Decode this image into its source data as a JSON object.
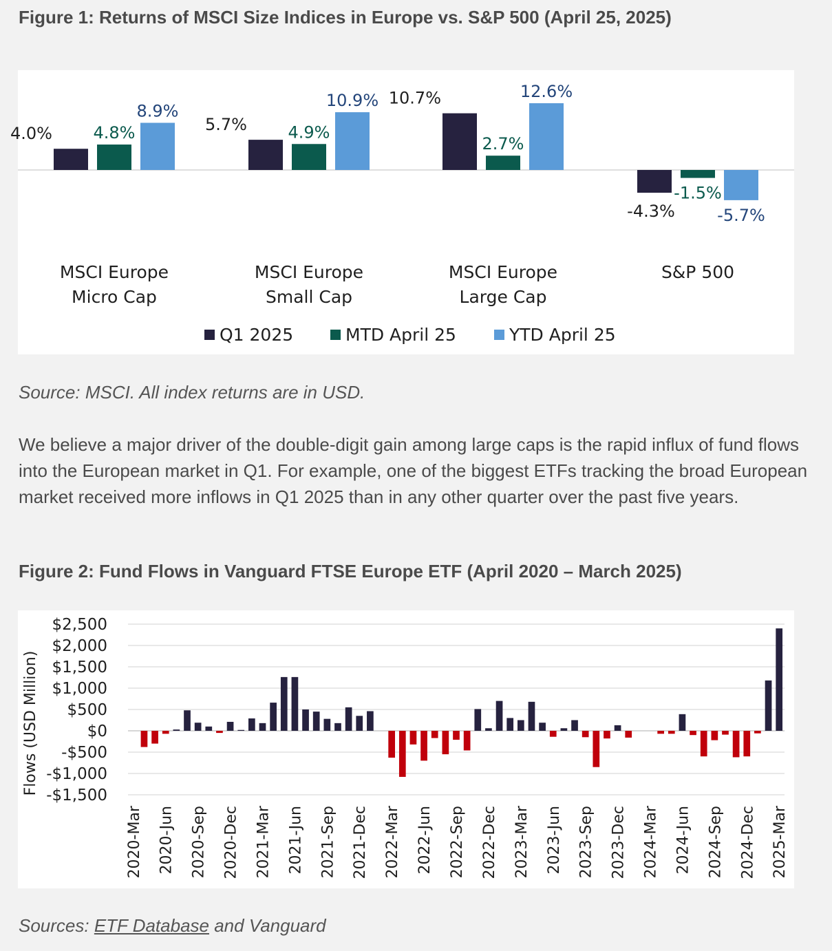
{
  "figure1": {
    "title": "Figure 1: Returns of MSCI Size Indices in Europe vs. S&P 500 (April 25, 2025)",
    "source": "Source: MSCI. All index returns are in USD.",
    "chart_data": {
      "type": "bar",
      "title": "Figure 1: Returns of MSCI Size Indices in Europe vs. S&P 500 (April 25, 2025)",
      "categories": [
        [
          "MSCI Europe",
          "Micro Cap"
        ],
        [
          "MSCI Europe",
          "Small Cap"
        ],
        [
          "MSCI Europe",
          "Large Cap"
        ],
        [
          "S&P 500"
        ]
      ],
      "series": [
        {
          "name": "Q1 2025",
          "color": "#26223f",
          "label_color": "#1f1f1f",
          "values": [
            4.0,
            5.7,
            10.7,
            -4.3
          ],
          "labels": [
            "4.0%",
            "5.7%",
            "10.7%",
            "-4.3%"
          ]
        },
        {
          "name": "MTD April 25",
          "color": "#0b5a4d",
          "label_color": "#0b5a4d",
          "values": [
            4.8,
            4.9,
            2.7,
            -1.5
          ],
          "labels": [
            "4.8%",
            "4.9%",
            "2.7%",
            "-1.5%"
          ]
        },
        {
          "name": "YTD April 25",
          "color": "#5b9bd8",
          "label_color": "#23457a",
          "values": [
            8.9,
            10.9,
            12.6,
            -5.7
          ],
          "labels": [
            "8.9%",
            "10.9%",
            "12.6%",
            "-5.7%"
          ]
        }
      ],
      "ylim": [
        -6,
        13
      ],
      "grid": false,
      "legend": "bottom"
    }
  },
  "paragraph": "We believe a major driver of the double-digit gain among large caps is the rapid influx of fund flows into the European market in Q1. For example, one of the biggest ETFs tracking the broad European market received more inflows in Q1 2025 than in any other quarter over the past five years.",
  "figure2": {
    "title": "Figure 2: Fund Flows in Vanguard FTSE Europe ETF (April 2020 – March 2025)",
    "source_prefix": "Sources: ",
    "source_link": "ETF Database",
    "source_suffix": " and Vanguard",
    "chart_data": {
      "type": "bar",
      "ylabel": "Flows (USD Million)",
      "ylim": [
        -1500,
        2500
      ],
      "yticks": [
        2500,
        2000,
        1500,
        1000,
        500,
        0,
        -500,
        -1000,
        -1500
      ],
      "ytick_labels": [
        "$2,500",
        "$2,000",
        "$1,500",
        "$1,000",
        "$500",
        "$0",
        "-$500",
        "-$1,000",
        "-$1,500"
      ],
      "xtick_labels": [
        "2020-Mar",
        "2020-Jun",
        "2020-Sep",
        "2020-Dec",
        "2021-Mar",
        "2021-Jun",
        "2021-Sep",
        "2021-Dec",
        "2022-Mar",
        "2022-Jun",
        "2022-Sep",
        "2022-Dec",
        "2023-Mar",
        "2023-Jun",
        "2023-Sep",
        "2023-Dec",
        "2024-Mar",
        "2024-Jun",
        "2024-Sep",
        "2024-Dec",
        "2025-Mar"
      ],
      "first_period": "2020-Mar",
      "last_period": "2025-Mar",
      "positive_color": "#26223f",
      "negative_color": "#c0000b",
      "grid": true,
      "values": [
        0,
        -380,
        -300,
        -70,
        30,
        480,
        190,
        100,
        -50,
        210,
        20,
        290,
        180,
        660,
        1260,
        1260,
        500,
        450,
        280,
        180,
        550,
        350,
        460,
        0,
        -630,
        -1080,
        -320,
        -700,
        -170,
        -550,
        -210,
        -460,
        510,
        60,
        700,
        300,
        250,
        680,
        190,
        -140,
        60,
        250,
        -150,
        -850,
        -180,
        130,
        -160,
        0,
        0,
        -70,
        -70,
        390,
        -100,
        -600,
        -220,
        -90,
        -620,
        -600,
        -60,
        1180,
        2400
      ]
    }
  }
}
